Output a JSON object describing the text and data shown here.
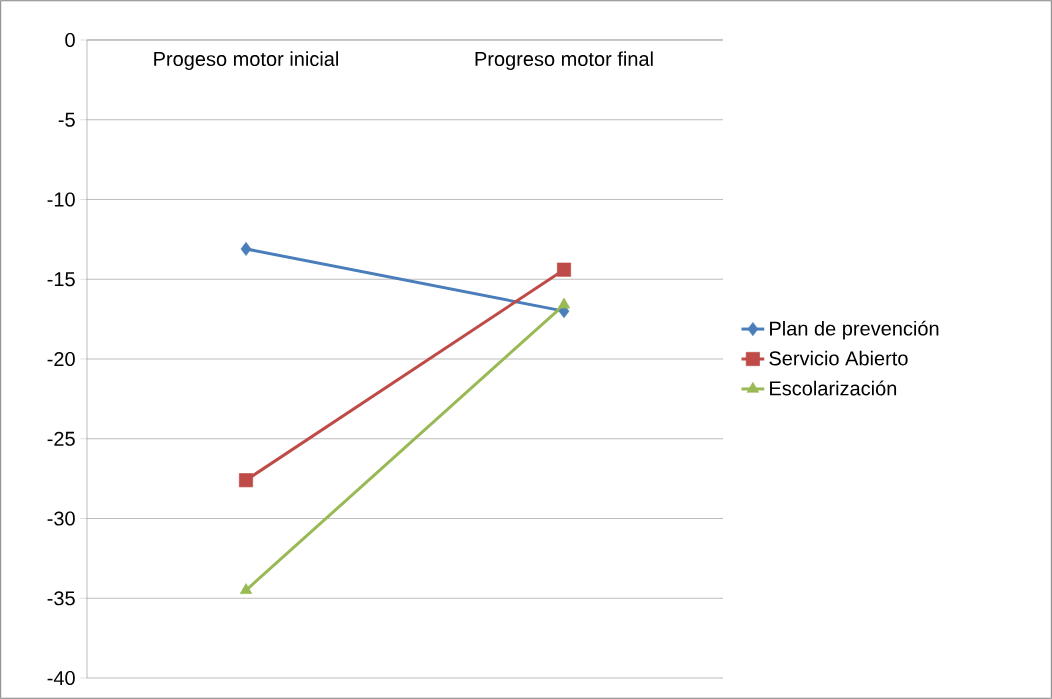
{
  "chart_data": {
    "type": "line",
    "categories": [
      "Progeso motor inicial",
      "Progreso motor final"
    ],
    "series": [
      {
        "name": "Plan de prevención",
        "color": "#4a7ebb",
        "marker": "diamond",
        "values": [
          -13.1,
          -17
        ]
      },
      {
        "name": "Servicio Abierto",
        "color": "#be4b48",
        "marker": "square",
        "values": [
          -27.6,
          -14.4
        ]
      },
      {
        "name": "Escolarización",
        "color": "#98b954",
        "marker": "triangle",
        "values": [
          -34.5,
          -16.6
        ]
      }
    ],
    "ylim": [
      -40,
      0
    ],
    "yticks": [
      -40,
      -35,
      -30,
      -25,
      -20,
      -15,
      -10,
      -5,
      0
    ],
    "grid": "y",
    "legend": "right",
    "line_style": "solid"
  }
}
